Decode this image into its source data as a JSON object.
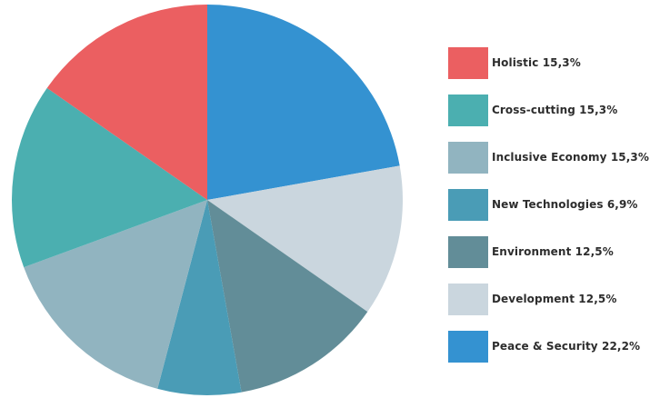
{
  "chart_data": {
    "type": "pie",
    "title": "",
    "start": "12 o'clock",
    "direction": "clockwise",
    "legend_position": "right",
    "slices": [
      {
        "label": "Peace & Security 22,2%",
        "value": 22.2,
        "color": "#3492d1"
      },
      {
        "label": "Development 12,5%",
        "value": 12.5,
        "color": "#cad6de"
      },
      {
        "label": "Environment 12,5%",
        "value": 12.5,
        "color": "#628d98"
      },
      {
        "label": "New Technologies 6,9%",
        "value": 6.9,
        "color": "#4a9cb6"
      },
      {
        "label": "Inclusive Economy 15,3%",
        "value": 15.3,
        "color": "#91b4c0"
      },
      {
        "label": "Cross-cutting 15,3%",
        "value": 15.3,
        "color": "#4bafb0"
      },
      {
        "label": "Holistic 15,3%",
        "value": 15.3,
        "color": "#eb5f61"
      }
    ],
    "legend_order": [
      "Holistic 15,3%",
      "Cross-cutting 15,3%",
      "Inclusive Economy 15,3%",
      "New Technologies 6,9%",
      "Environment 12,5%",
      "Development 12,5%",
      "Peace & Security 22,2%"
    ]
  }
}
